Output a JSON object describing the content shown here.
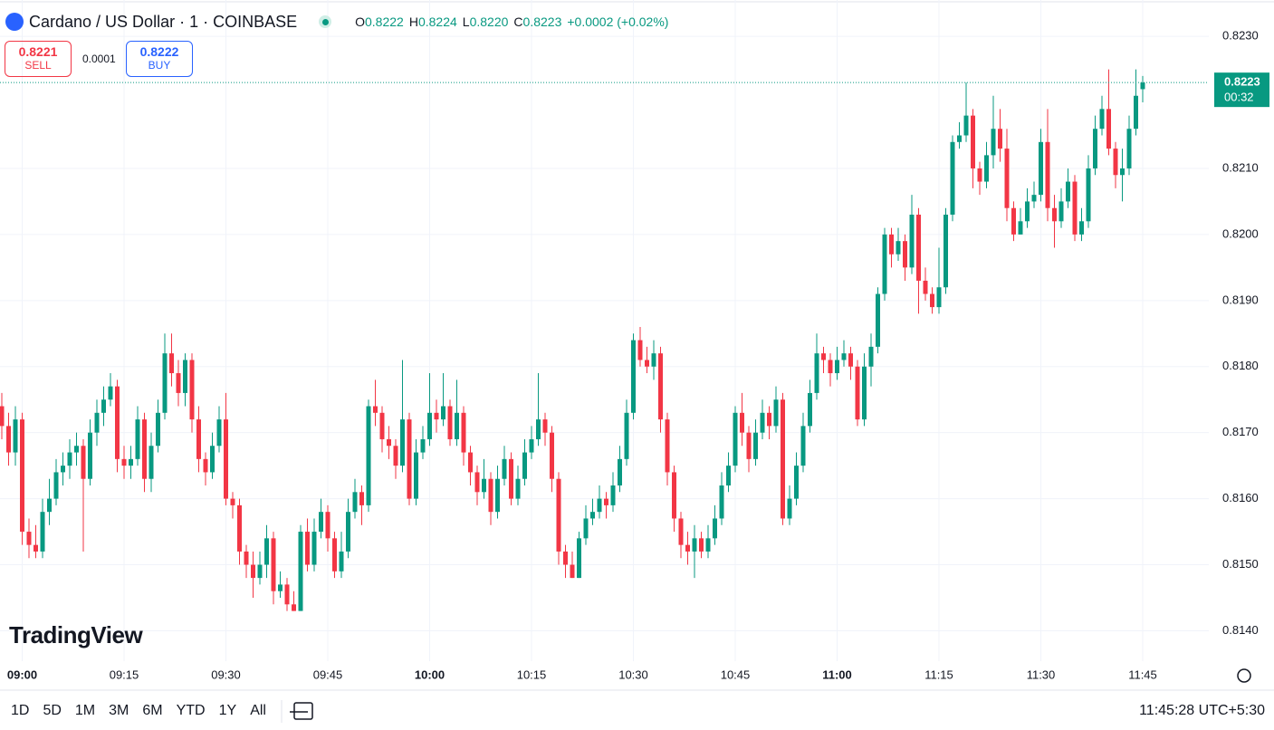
{
  "header": {
    "symbol": "Cardano / US Dollar · 1 · COINBASE",
    "ohlc": [
      {
        "key": "O",
        "value": "0.8222"
      },
      {
        "key": "H",
        "value": "0.8224"
      },
      {
        "key": "L",
        "value": "0.8220"
      },
      {
        "key": "C",
        "value": "0.8223"
      }
    ],
    "change": "+0.0002 (+0.02%)"
  },
  "trade": {
    "sell": {
      "price": "0.8221",
      "label": "SELL"
    },
    "spread": "0.0001",
    "buy": {
      "price": "0.8222",
      "label": "BUY"
    }
  },
  "last_price": {
    "price": "0.8223",
    "countdown": "00:32"
  },
  "logo": "TradingView",
  "toolbar": {
    "ranges": [
      "1D",
      "5D",
      "1M",
      "3M",
      "6M",
      "YTD",
      "1Y",
      "All"
    ],
    "clock": "11:45:28 UTC+5:30"
  },
  "chart_data": {
    "type": "candlestick",
    "up_color": "#089981",
    "down_color": "#f23645",
    "grid": true,
    "ylim": [
      0.81354,
      0.82355
    ],
    "yticks": [
      {
        "value": 0.814,
        "label": "0.8140"
      },
      {
        "value": 0.815,
        "label": "0.8150"
      },
      {
        "value": 0.816,
        "label": "0.8160"
      },
      {
        "value": 0.817,
        "label": "0.8170"
      },
      {
        "value": 0.818,
        "label": "0.8180"
      },
      {
        "value": 0.819,
        "label": "0.8190"
      },
      {
        "value": 0.82,
        "label": "0.8200"
      },
      {
        "value": 0.821,
        "label": "0.8210"
      },
      {
        "value": 0.823,
        "label": "0.8230"
      }
    ],
    "xticks": [
      "09:00",
      "09:15",
      "09:30",
      "09:45",
      "10:00",
      "10:15",
      "10:30",
      "10:45",
      "11:00",
      "11:15",
      "11:30",
      "11:45"
    ],
    "x": [
      "08:57",
      "08:58",
      "08:59",
      "09:00",
      "09:01",
      "09:02",
      "09:03",
      "09:04",
      "09:05",
      "09:06",
      "09:07",
      "09:08",
      "09:09",
      "09:10",
      "09:11",
      "09:12",
      "09:13",
      "09:14",
      "09:15",
      "09:16",
      "09:17",
      "09:18",
      "09:19",
      "09:20",
      "09:21",
      "09:22",
      "09:23",
      "09:24",
      "09:25",
      "09:26",
      "09:27",
      "09:28",
      "09:29",
      "09:30",
      "09:31",
      "09:32",
      "09:33",
      "09:34",
      "09:35",
      "09:36",
      "09:37",
      "09:38",
      "09:39",
      "09:40",
      "09:41",
      "09:42",
      "09:43",
      "09:44",
      "09:45",
      "09:46",
      "09:47",
      "09:48",
      "09:49",
      "09:50",
      "09:51",
      "09:52",
      "09:53",
      "09:54",
      "09:55",
      "09:56",
      "09:57",
      "09:58",
      "09:59",
      "10:00",
      "10:01",
      "10:02",
      "10:03",
      "10:04",
      "10:05",
      "10:06",
      "10:07",
      "10:08",
      "10:09",
      "10:10",
      "10:11",
      "10:12",
      "10:13",
      "10:14",
      "10:15",
      "10:16",
      "10:17",
      "10:18",
      "10:19",
      "10:20",
      "10:21",
      "10:22",
      "10:23",
      "10:24",
      "10:25",
      "10:26",
      "10:27",
      "10:28",
      "10:29",
      "10:30",
      "10:31",
      "10:32",
      "10:33",
      "10:34",
      "10:35",
      "10:36",
      "10:37",
      "10:38",
      "10:39",
      "10:40",
      "10:41",
      "10:42",
      "10:43",
      "10:44",
      "10:45",
      "10:46",
      "10:47",
      "10:48",
      "10:49",
      "10:50",
      "10:51",
      "10:52",
      "10:53",
      "10:54",
      "10:55",
      "10:56",
      "10:57",
      "10:58",
      "10:59",
      "11:00",
      "11:01",
      "11:02",
      "11:03",
      "11:04",
      "11:05",
      "11:06",
      "11:07",
      "11:08",
      "11:09",
      "11:10",
      "11:11",
      "11:12",
      "11:13",
      "11:14",
      "11:15",
      "11:16",
      "11:17",
      "11:18",
      "11:19",
      "11:20",
      "11:21",
      "11:22",
      "11:23",
      "11:24",
      "11:25",
      "11:26",
      "11:27",
      "11:28",
      "11:29",
      "11:30",
      "11:31",
      "11:32",
      "11:33",
      "11:34",
      "11:35",
      "11:36",
      "11:37",
      "11:38",
      "11:39",
      "11:40",
      "11:41",
      "11:42",
      "11:43",
      "11:44",
      "11:45"
    ],
    "candles": [
      [
        0.8174,
        0.8176,
        0.8169,
        0.8171
      ],
      [
        0.8171,
        0.8173,
        0.8165,
        0.8167
      ],
      [
        0.8167,
        0.8174,
        0.8165,
        0.8172
      ],
      [
        0.8172,
        0.8173,
        0.8153,
        0.8155
      ],
      [
        0.8155,
        0.8157,
        0.8151,
        0.8153
      ],
      [
        0.8153,
        0.8156,
        0.8151,
        0.8152
      ],
      [
        0.8152,
        0.816,
        0.8151,
        0.8158
      ],
      [
        0.8158,
        0.8163,
        0.8156,
        0.816
      ],
      [
        0.816,
        0.8166,
        0.8159,
        0.8164
      ],
      [
        0.8164,
        0.8167,
        0.8162,
        0.8165
      ],
      [
        0.8165,
        0.8169,
        0.8163,
        0.8167
      ],
      [
        0.8167,
        0.817,
        0.8165,
        0.8168
      ],
      [
        0.8168,
        0.8169,
        0.8152,
        0.8163
      ],
      [
        0.8163,
        0.8172,
        0.8162,
        0.817
      ],
      [
        0.817,
        0.8175,
        0.8168,
        0.8173
      ],
      [
        0.8173,
        0.8177,
        0.8171,
        0.8175
      ],
      [
        0.8175,
        0.8179,
        0.8174,
        0.8177
      ],
      [
        0.8177,
        0.8178,
        0.8164,
        0.8166
      ],
      [
        0.8166,
        0.8168,
        0.8163,
        0.8165
      ],
      [
        0.8165,
        0.8168,
        0.8163,
        0.8166
      ],
      [
        0.8166,
        0.8174,
        0.8165,
        0.8172
      ],
      [
        0.8172,
        0.8173,
        0.8161,
        0.8163
      ],
      [
        0.8163,
        0.817,
        0.8161,
        0.8168
      ],
      [
        0.8168,
        0.8175,
        0.8167,
        0.8173
      ],
      [
        0.8173,
        0.8185,
        0.8172,
        0.8182
      ],
      [
        0.8182,
        0.8185,
        0.8177,
        0.8179
      ],
      [
        0.8179,
        0.8181,
        0.8174,
        0.8176
      ],
      [
        0.8176,
        0.8182,
        0.8174,
        0.8181
      ],
      [
        0.8181,
        0.8182,
        0.817,
        0.8172
      ],
      [
        0.8172,
        0.8174,
        0.8164,
        0.8166
      ],
      [
        0.8166,
        0.8167,
        0.8162,
        0.8164
      ],
      [
        0.8164,
        0.817,
        0.8163,
        0.8168
      ],
      [
        0.8168,
        0.8174,
        0.8167,
        0.8172
      ],
      [
        0.8172,
        0.8176,
        0.8159,
        0.816
      ],
      [
        0.816,
        0.8161,
        0.8157,
        0.8159
      ],
      [
        0.8159,
        0.816,
        0.815,
        0.8152
      ],
      [
        0.8152,
        0.8153,
        0.8148,
        0.815
      ],
      [
        0.815,
        0.8152,
        0.8145,
        0.8148
      ],
      [
        0.8148,
        0.8152,
        0.8147,
        0.815
      ],
      [
        0.815,
        0.8156,
        0.8148,
        0.8154
      ],
      [
        0.8154,
        0.8155,
        0.8144,
        0.8146
      ],
      [
        0.8146,
        0.8149,
        0.8145,
        0.8147
      ],
      [
        0.8147,
        0.8148,
        0.8143,
        0.8144
      ],
      [
        0.8144,
        0.8146,
        0.8143,
        0.8143
      ],
      [
        0.8143,
        0.8156,
        0.8143,
        0.8155
      ],
      [
        0.8155,
        0.8157,
        0.8149,
        0.815
      ],
      [
        0.815,
        0.8157,
        0.8149,
        0.8155
      ],
      [
        0.8155,
        0.816,
        0.8154,
        0.8158
      ],
      [
        0.8158,
        0.8159,
        0.8152,
        0.8154
      ],
      [
        0.8154,
        0.8155,
        0.8148,
        0.8149
      ],
      [
        0.8149,
        0.8155,
        0.8148,
        0.8152
      ],
      [
        0.8152,
        0.816,
        0.8151,
        0.8158
      ],
      [
        0.8158,
        0.8163,
        0.8157,
        0.8161
      ],
      [
        0.8161,
        0.8162,
        0.8156,
        0.8159
      ],
      [
        0.8159,
        0.8175,
        0.8158,
        0.8174
      ],
      [
        0.8174,
        0.8178,
        0.8171,
        0.8173
      ],
      [
        0.8173,
        0.8174,
        0.8167,
        0.8169
      ],
      [
        0.8169,
        0.8171,
        0.8166,
        0.8168
      ],
      [
        0.8168,
        0.8169,
        0.8163,
        0.8165
      ],
      [
        0.8165,
        0.8181,
        0.8164,
        0.8172
      ],
      [
        0.8172,
        0.8173,
        0.8159,
        0.816
      ],
      [
        0.816,
        0.8169,
        0.8159,
        0.8167
      ],
      [
        0.8167,
        0.8171,
        0.8166,
        0.8169
      ],
      [
        0.8169,
        0.8179,
        0.8168,
        0.8173
      ],
      [
        0.8173,
        0.8175,
        0.817,
        0.8172
      ],
      [
        0.8172,
        0.8179,
        0.8171,
        0.8174
      ],
      [
        0.8174,
        0.8175,
        0.8168,
        0.8169
      ],
      [
        0.8169,
        0.8178,
        0.8168,
        0.8173
      ],
      [
        0.8173,
        0.8174,
        0.8165,
        0.8167
      ],
      [
        0.8167,
        0.8168,
        0.8162,
        0.8164
      ],
      [
        0.8164,
        0.8165,
        0.8159,
        0.8161
      ],
      [
        0.8161,
        0.8166,
        0.816,
        0.8163
      ],
      [
        0.8163,
        0.8164,
        0.8156,
        0.8158
      ],
      [
        0.8158,
        0.8165,
        0.8157,
        0.8163
      ],
      [
        0.8163,
        0.8168,
        0.8162,
        0.8166
      ],
      [
        0.8166,
        0.8167,
        0.8159,
        0.816
      ],
      [
        0.816,
        0.8165,
        0.8159,
        0.8163
      ],
      [
        0.8163,
        0.8169,
        0.8162,
        0.8167
      ],
      [
        0.8167,
        0.8171,
        0.8166,
        0.8169
      ],
      [
        0.8169,
        0.8179,
        0.8168,
        0.8172
      ],
      [
        0.8172,
        0.8173,
        0.8168,
        0.817
      ],
      [
        0.817,
        0.8171,
        0.8161,
        0.8163
      ],
      [
        0.8163,
        0.8164,
        0.815,
        0.8152
      ],
      [
        0.8152,
        0.8153,
        0.8148,
        0.815
      ],
      [
        0.815,
        0.8152,
        0.8148,
        0.8148
      ],
      [
        0.8148,
        0.8155,
        0.8148,
        0.8154
      ],
      [
        0.8154,
        0.8159,
        0.8153,
        0.8157
      ],
      [
        0.8157,
        0.816,
        0.8156,
        0.8158
      ],
      [
        0.8158,
        0.8162,
        0.8157,
        0.816
      ],
      [
        0.816,
        0.8161,
        0.8157,
        0.8159
      ],
      [
        0.8159,
        0.8164,
        0.8158,
        0.8162
      ],
      [
        0.8162,
        0.8168,
        0.8161,
        0.8166
      ],
      [
        0.8166,
        0.8175,
        0.8165,
        0.8173
      ],
      [
        0.8173,
        0.8185,
        0.8172,
        0.8184
      ],
      [
        0.8184,
        0.8186,
        0.818,
        0.8181
      ],
      [
        0.8181,
        0.8183,
        0.8179,
        0.818
      ],
      [
        0.818,
        0.8184,
        0.8178,
        0.8182
      ],
      [
        0.8182,
        0.8183,
        0.817,
        0.8172
      ],
      [
        0.8172,
        0.8173,
        0.8162,
        0.8164
      ],
      [
        0.8164,
        0.8165,
        0.8155,
        0.8157
      ],
      [
        0.8157,
        0.8158,
        0.8151,
        0.8153
      ],
      [
        0.8153,
        0.8155,
        0.815,
        0.8152
      ],
      [
        0.8152,
        0.8156,
        0.8148,
        0.8154
      ],
      [
        0.8154,
        0.8155,
        0.8151,
        0.8152
      ],
      [
        0.8152,
        0.8156,
        0.8151,
        0.8154
      ],
      [
        0.8154,
        0.8159,
        0.8153,
        0.8157
      ],
      [
        0.8157,
        0.8164,
        0.8156,
        0.8162
      ],
      [
        0.8162,
        0.8167,
        0.8161,
        0.8165
      ],
      [
        0.8165,
        0.8174,
        0.8164,
        0.8173
      ],
      [
        0.8173,
        0.8176,
        0.8168,
        0.817
      ],
      [
        0.817,
        0.8171,
        0.8164,
        0.8166
      ],
      [
        0.8166,
        0.8172,
        0.8165,
        0.817
      ],
      [
        0.817,
        0.8175,
        0.8169,
        0.8173
      ],
      [
        0.8173,
        0.8174,
        0.8169,
        0.8171
      ],
      [
        0.8171,
        0.8177,
        0.817,
        0.8175
      ],
      [
        0.8175,
        0.8176,
        0.8156,
        0.8157
      ],
      [
        0.8157,
        0.8162,
        0.8156,
        0.816
      ],
      [
        0.816,
        0.8167,
        0.8159,
        0.8165
      ],
      [
        0.8165,
        0.8173,
        0.8164,
        0.8171
      ],
      [
        0.8171,
        0.8178,
        0.817,
        0.8176
      ],
      [
        0.8176,
        0.8185,
        0.8175,
        0.8182
      ],
      [
        0.8182,
        0.8183,
        0.8179,
        0.8181
      ],
      [
        0.8181,
        0.8182,
        0.8177,
        0.8179
      ],
      [
        0.8179,
        0.8183,
        0.8178,
        0.8181
      ],
      [
        0.8181,
        0.8184,
        0.818,
        0.8182
      ],
      [
        0.8182,
        0.8183,
        0.8178,
        0.818
      ],
      [
        0.818,
        0.8181,
        0.8171,
        0.8172
      ],
      [
        0.8172,
        0.8182,
        0.8171,
        0.818
      ],
      [
        0.818,
        0.8185,
        0.8177,
        0.8183
      ],
      [
        0.8183,
        0.8192,
        0.8182,
        0.8191
      ],
      [
        0.8191,
        0.8201,
        0.819,
        0.82
      ],
      [
        0.82,
        0.8201,
        0.8195,
        0.8197
      ],
      [
        0.8197,
        0.8201,
        0.8196,
        0.8199
      ],
      [
        0.8199,
        0.82,
        0.8193,
        0.8195
      ],
      [
        0.8195,
        0.8206,
        0.8194,
        0.8203
      ],
      [
        0.8203,
        0.8204,
        0.8188,
        0.8193
      ],
      [
        0.8193,
        0.8195,
        0.819,
        0.8191
      ],
      [
        0.8191,
        0.8192,
        0.8188,
        0.8189
      ],
      [
        0.8189,
        0.8198,
        0.8188,
        0.8192
      ],
      [
        0.8192,
        0.8204,
        0.8191,
        0.8203
      ],
      [
        0.8203,
        0.8215,
        0.8202,
        0.8214
      ],
      [
        0.8214,
        0.8217,
        0.8213,
        0.8215
      ],
      [
        0.8215,
        0.8223,
        0.8214,
        0.8218
      ],
      [
        0.8218,
        0.8219,
        0.8207,
        0.821
      ],
      [
        0.821,
        0.8211,
        0.8206,
        0.8208
      ],
      [
        0.8208,
        0.8214,
        0.8207,
        0.8212
      ],
      [
        0.8212,
        0.8221,
        0.821,
        0.8216
      ],
      [
        0.8216,
        0.8219,
        0.8211,
        0.8213
      ],
      [
        0.8213,
        0.8216,
        0.8202,
        0.8204
      ],
      [
        0.8204,
        0.8205,
        0.8199,
        0.82
      ],
      [
        0.82,
        0.8204,
        0.82,
        0.8202
      ],
      [
        0.8202,
        0.8207,
        0.8201,
        0.8205
      ],
      [
        0.8205,
        0.8208,
        0.8204,
        0.8206
      ],
      [
        0.8206,
        0.8216,
        0.8205,
        0.8214
      ],
      [
        0.8214,
        0.8219,
        0.8202,
        0.8204
      ],
      [
        0.8204,
        0.8206,
        0.8198,
        0.8202
      ],
      [
        0.8202,
        0.8207,
        0.8201,
        0.8205
      ],
      [
        0.8205,
        0.821,
        0.8204,
        0.8208
      ],
      [
        0.8208,
        0.8209,
        0.8199,
        0.82
      ],
      [
        0.82,
        0.8204,
        0.8199,
        0.8202
      ],
      [
        0.8202,
        0.8212,
        0.8201,
        0.821
      ],
      [
        0.821,
        0.8218,
        0.8209,
        0.8216
      ],
      [
        0.8216,
        0.8221,
        0.8215,
        0.8219
      ],
      [
        0.8219,
        0.8225,
        0.8212,
        0.8213
      ],
      [
        0.8213,
        0.8214,
        0.8207,
        0.8209
      ],
      [
        0.8209,
        0.8213,
        0.8205,
        0.821
      ],
      [
        0.821,
        0.8218,
        0.8209,
        0.8216
      ],
      [
        0.8216,
        0.8225,
        0.8215,
        0.8221
      ],
      [
        0.8222,
        0.8224,
        0.822,
        0.8223
      ]
    ]
  }
}
